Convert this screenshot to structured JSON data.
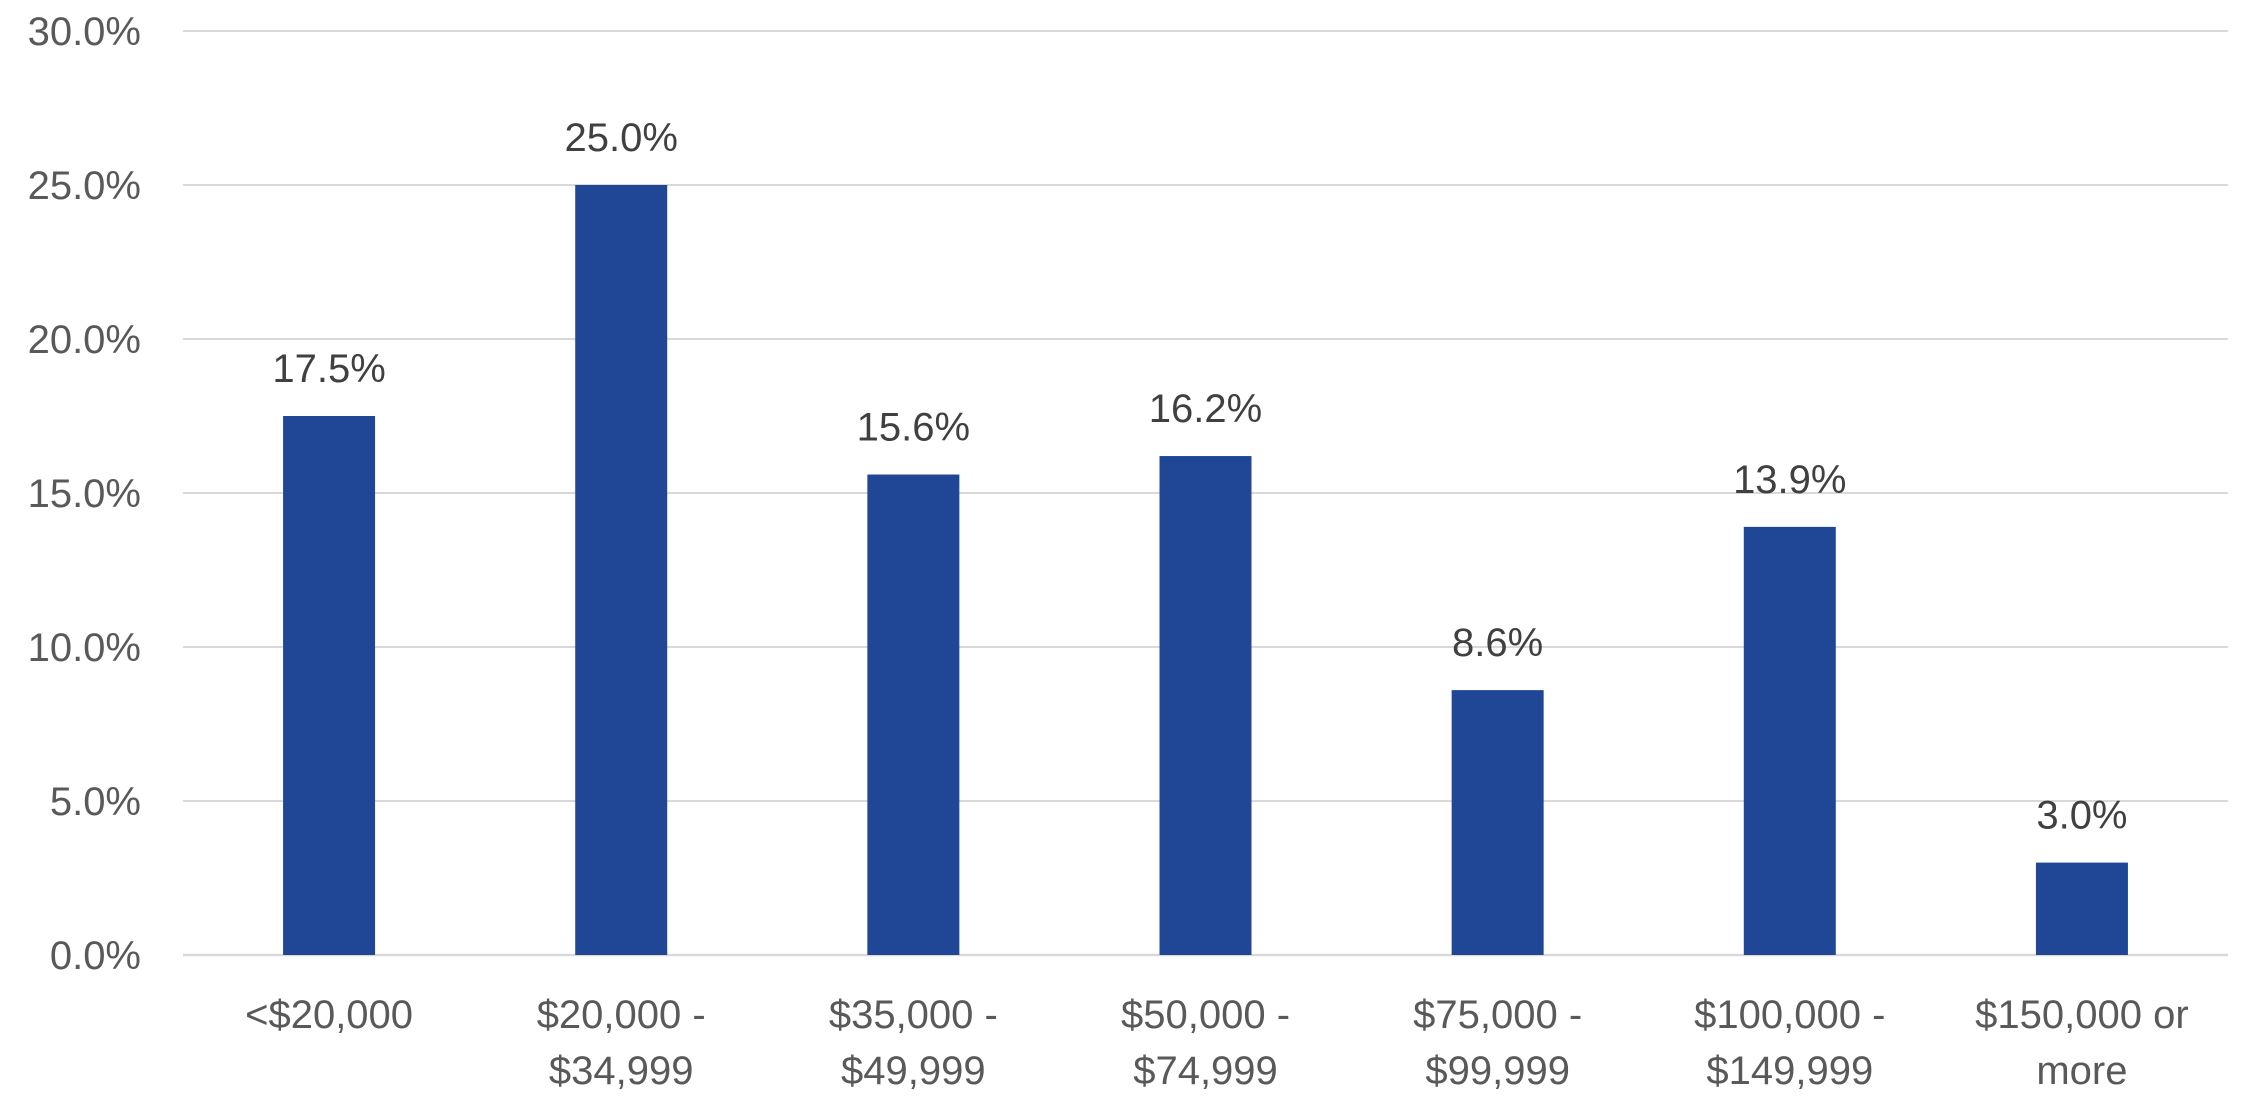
{
  "chart_data": {
    "type": "bar",
    "title": "",
    "xlabel": "",
    "ylabel": "",
    "categories": [
      [
        "<$20,000"
      ],
      [
        "$20,000 -",
        "$34,999"
      ],
      [
        "$35,000 -",
        "$49,999"
      ],
      [
        "$50,000 -",
        "$74,999"
      ],
      [
        "$75,000 -",
        "$99,999"
      ],
      [
        "$100,000 -",
        "$149,999"
      ],
      [
        "$150,000 or",
        "more"
      ]
    ],
    "values": [
      17.5,
      25.0,
      15.6,
      16.2,
      8.6,
      13.9,
      3.0
    ],
    "data_labels": [
      "17.5%",
      "25.0%",
      "15.6%",
      "16.2%",
      "8.6%",
      "13.9%",
      "3.0%"
    ],
    "ylim": [
      0,
      30
    ],
    "yticks": [
      0,
      5,
      10,
      15,
      20,
      25,
      30
    ],
    "ytick_labels": [
      "0.0%",
      "5.0%",
      "10.0%",
      "15.0%",
      "20.0%",
      "25.0%",
      "30.0%"
    ],
    "grid": true,
    "legend": "none",
    "bar_color": "#1f4796"
  }
}
